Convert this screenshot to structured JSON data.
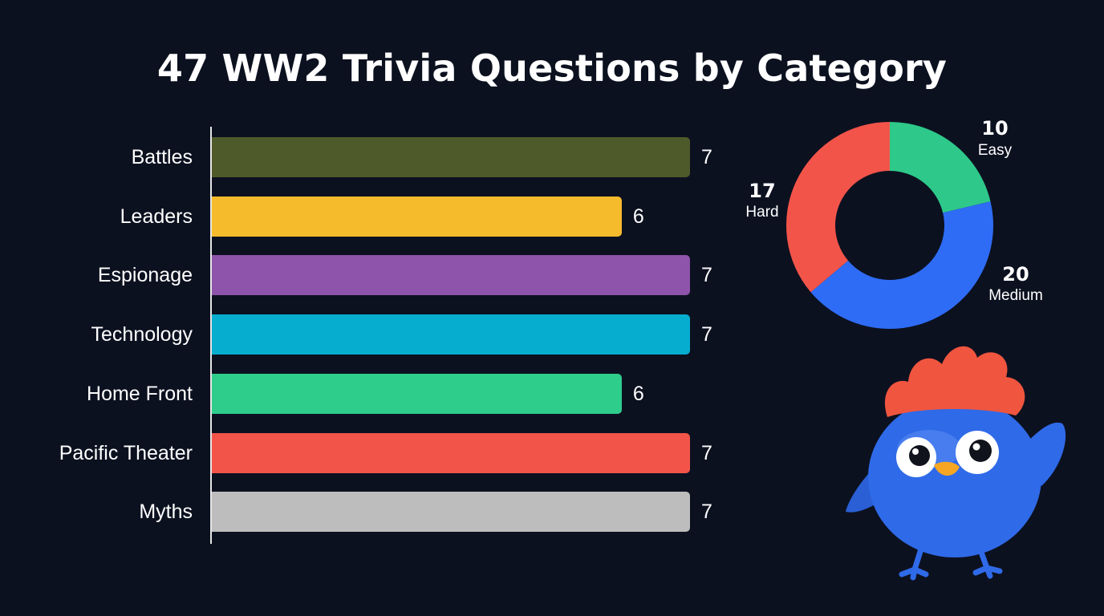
{
  "chart_data": [
    {
      "type": "bar",
      "orientation": "horizontal",
      "title": "47 WW2 Trivia Questions by Category",
      "categories": [
        "Battles",
        "Leaders",
        "Espionage",
        "Technology",
        "Home Front",
        "Pacific Theater",
        "Myths"
      ],
      "values": [
        7,
        6,
        7,
        7,
        6,
        7,
        7
      ],
      "colors": [
        "#4f5a2a",
        "#f6bb2d",
        "#8e54ab",
        "#06adcf",
        "#2ecd8b",
        "#f35449",
        "#bdbdbd"
      ],
      "xlim": [
        0,
        7
      ],
      "grid": false,
      "data_labels": true
    },
    {
      "type": "pie",
      "style": "donut",
      "slices": [
        {
          "label": "Easy",
          "value": 10,
          "color": "#2ec98a"
        },
        {
          "label": "Medium",
          "value": 20,
          "color": "#2f6cf5"
        },
        {
          "label": "Hard",
          "value": 17,
          "color": "#f35449"
        }
      ]
    }
  ],
  "decor": {
    "mascot_icon": "blue-bird-mascot-icon",
    "mascot_colors": {
      "body": "#2f6ae8",
      "crest": "#f0553f",
      "beak": "#f6a623"
    }
  }
}
